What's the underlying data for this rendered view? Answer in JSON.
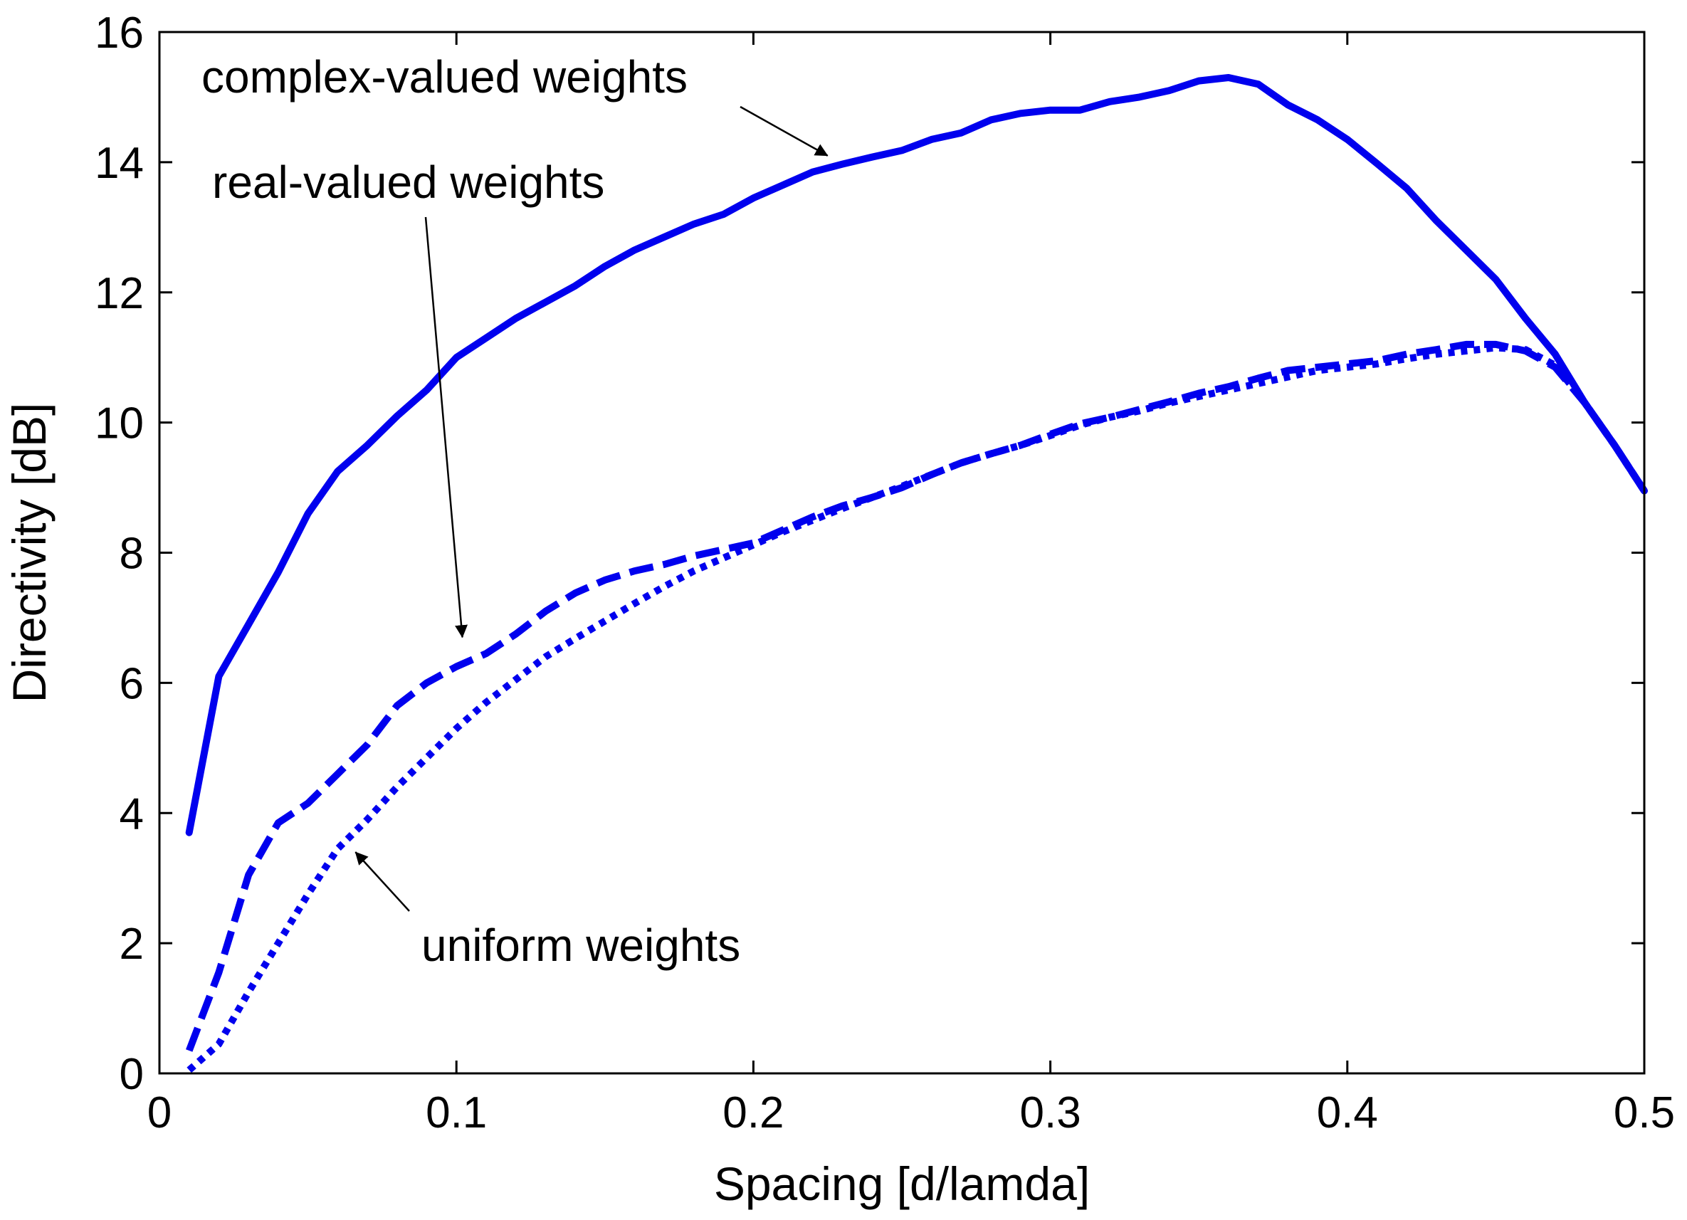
{
  "chart_data": {
    "type": "line",
    "title": "",
    "xlabel": "Spacing [d/lamda]",
    "ylabel": "Directivity [dB]",
    "xlim": [
      0,
      0.5
    ],
    "ylim": [
      0,
      16
    ],
    "xticks": [
      0,
      0.1,
      0.2,
      0.3,
      0.4,
      0.5
    ],
    "xtick_labels": [
      "0",
      "0.1",
      "0.2",
      "0.3",
      "0.4",
      "0.5"
    ],
    "yticks": [
      0,
      2,
      4,
      6,
      8,
      10,
      12,
      14,
      16
    ],
    "ytick_labels": [
      "0",
      "2",
      "4",
      "6",
      "8",
      "10",
      "12",
      "14",
      "16"
    ],
    "grid": false,
    "series": [
      {
        "name": "complex-valued weights",
        "style": "solid",
        "color": "#0000ee",
        "x": [
          0.01,
          0.02,
          0.03,
          0.04,
          0.05,
          0.06,
          0.07,
          0.08,
          0.09,
          0.1,
          0.11,
          0.12,
          0.13,
          0.14,
          0.15,
          0.16,
          0.17,
          0.18,
          0.19,
          0.2,
          0.21,
          0.22,
          0.23,
          0.24,
          0.25,
          0.26,
          0.27,
          0.28,
          0.29,
          0.3,
          0.31,
          0.32,
          0.33,
          0.34,
          0.35,
          0.36,
          0.37,
          0.38,
          0.39,
          0.4,
          0.41,
          0.42,
          0.43,
          0.44,
          0.45,
          0.46,
          0.47,
          0.48,
          0.49,
          0.5
        ],
        "y": [
          3.7,
          6.1,
          6.9,
          7.7,
          8.6,
          9.25,
          9.65,
          10.1,
          10.5,
          11.0,
          11.3,
          11.6,
          11.85,
          12.1,
          12.4,
          12.65,
          12.85,
          13.05,
          13.2,
          13.45,
          13.65,
          13.85,
          13.97,
          14.08,
          14.18,
          14.35,
          14.45,
          14.65,
          14.75,
          14.8,
          14.8,
          14.93,
          15.0,
          15.1,
          15.25,
          15.3,
          15.2,
          14.88,
          14.65,
          14.35,
          13.98,
          13.6,
          13.1,
          12.65,
          12.2,
          11.6,
          11.05,
          10.3,
          9.65,
          8.95
        ]
      },
      {
        "name": "real-valued weights",
        "style": "dashed",
        "color": "#0000ee",
        "x": [
          0.01,
          0.02,
          0.03,
          0.04,
          0.05,
          0.06,
          0.07,
          0.08,
          0.09,
          0.1,
          0.11,
          0.12,
          0.13,
          0.14,
          0.15,
          0.16,
          0.17,
          0.18,
          0.19,
          0.2,
          0.21,
          0.22,
          0.23,
          0.24,
          0.25,
          0.26,
          0.27,
          0.28,
          0.29,
          0.3,
          0.31,
          0.32,
          0.33,
          0.34,
          0.35,
          0.36,
          0.37,
          0.38,
          0.39,
          0.4,
          0.41,
          0.42,
          0.43,
          0.44,
          0.45,
          0.46,
          0.47,
          0.48,
          0.49,
          0.5
        ],
        "y": [
          0.35,
          1.55,
          3.05,
          3.85,
          4.15,
          4.6,
          5.05,
          5.65,
          6.0,
          6.25,
          6.45,
          6.75,
          7.1,
          7.38,
          7.58,
          7.72,
          7.82,
          7.95,
          8.05,
          8.15,
          8.35,
          8.55,
          8.72,
          8.85,
          9.0,
          9.2,
          9.38,
          9.52,
          9.65,
          9.82,
          9.98,
          10.08,
          10.2,
          10.32,
          10.45,
          10.55,
          10.68,
          10.8,
          10.85,
          10.9,
          10.95,
          11.05,
          11.12,
          11.2,
          11.2,
          11.1,
          10.85,
          10.3,
          9.65,
          8.95
        ]
      },
      {
        "name": "uniform weights",
        "style": "dotted",
        "color": "#0000ee",
        "x": [
          0.01,
          0.02,
          0.03,
          0.04,
          0.05,
          0.06,
          0.07,
          0.08,
          0.09,
          0.1,
          0.11,
          0.12,
          0.13,
          0.14,
          0.15,
          0.16,
          0.17,
          0.18,
          0.19,
          0.2,
          0.21,
          0.22,
          0.23,
          0.24,
          0.25,
          0.26,
          0.27,
          0.28,
          0.29,
          0.3,
          0.31,
          0.32,
          0.33,
          0.34,
          0.35,
          0.36,
          0.37,
          0.38,
          0.39,
          0.4,
          0.41,
          0.42,
          0.43,
          0.44,
          0.45,
          0.46,
          0.47,
          0.48,
          0.49,
          0.5
        ],
        "y": [
          0.05,
          0.45,
          1.25,
          2.0,
          2.75,
          3.45,
          3.9,
          4.4,
          4.85,
          5.3,
          5.7,
          6.05,
          6.4,
          6.68,
          6.95,
          7.22,
          7.48,
          7.72,
          7.92,
          8.12,
          8.32,
          8.5,
          8.68,
          8.85,
          9.02,
          9.2,
          9.38,
          9.52,
          9.65,
          9.8,
          9.96,
          10.08,
          10.18,
          10.3,
          10.4,
          10.5,
          10.6,
          10.7,
          10.8,
          10.85,
          10.9,
          10.98,
          11.05,
          11.1,
          11.15,
          11.12,
          10.88,
          10.3,
          9.65,
          8.95
        ]
      }
    ],
    "annotations": [
      {
        "text": "complex-valued weights",
        "arrow_to": [
          0.225,
          14.1
        ]
      },
      {
        "text": "real-valued weights",
        "arrow_to": [
          0.102,
          6.7
        ]
      },
      {
        "text": "uniform weights",
        "arrow_to": [
          0.066,
          3.4
        ]
      }
    ]
  }
}
